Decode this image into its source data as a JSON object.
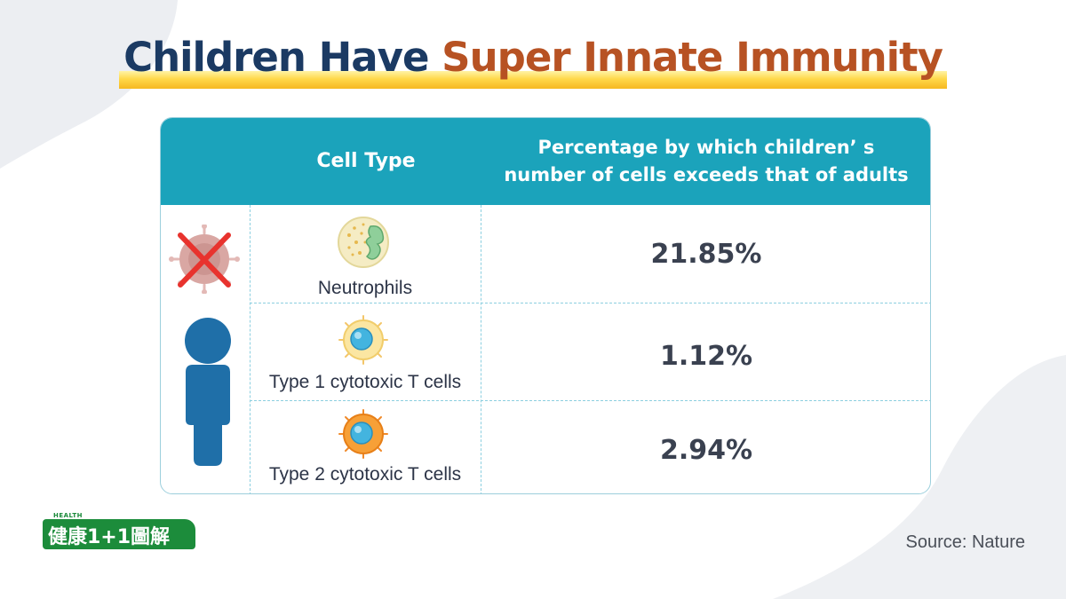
{
  "title": {
    "part1": "Children Have ",
    "part2": "Super Innate Immunity"
  },
  "table": {
    "headers": {
      "cell_type": "Cell Type",
      "percentage_line1": "Percentage by which children’ s",
      "percentage_line2": "number of cells exceeds that of adults"
    },
    "rows": [
      {
        "cell": "Neutrophils",
        "percentage": "21.85%",
        "icon": "neutrophil-cell-icon"
      },
      {
        "cell": "Type 1 cytotoxic T cells",
        "percentage": "1.12%",
        "icon": "t-cell-type1-icon"
      },
      {
        "cell": "Type 2 cytotoxic T cells",
        "percentage": "2.94%",
        "icon": "t-cell-type2-icon"
      }
    ]
  },
  "side_icons": [
    "crossed-virus-icon",
    "child-person-icon"
  ],
  "logo": {
    "small_text": "HEALTH",
    "main_text": "健康1+1圖解"
  },
  "source": "Source: Nature",
  "colors": {
    "title_navy": "#1b3a63",
    "title_orange": "#b75223",
    "header_teal": "#1ba3bb",
    "person_blue": "#1f6fa8",
    "logo_green": "#1c8c3b"
  }
}
